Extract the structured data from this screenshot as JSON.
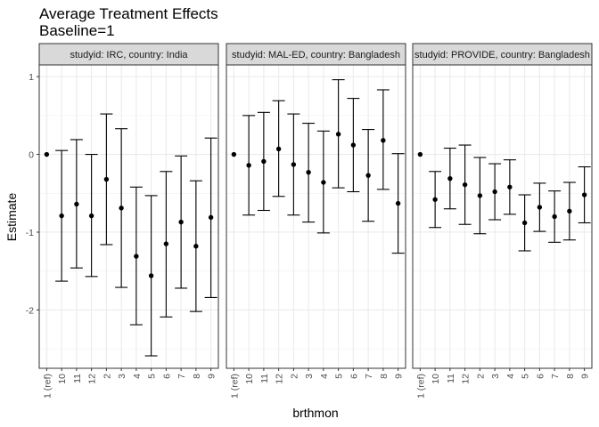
{
  "chart_data": {
    "type": "scatter",
    "subtype": "point-with-errorbars",
    "title": "Average Treatment Effects",
    "subtitle": "Baseline=1",
    "xlabel": "brthmon",
    "ylabel": "Estimate",
    "ylim": [
      -2.75,
      1.15
    ],
    "y_ticks": [
      1,
      0,
      -1,
      -2
    ],
    "categories": [
      "1 (ref)",
      "10",
      "11",
      "12",
      "2",
      "3",
      "4",
      "5",
      "6",
      "7",
      "8",
      "9"
    ],
    "grid": true,
    "theme": "bw",
    "point_color": "#000000",
    "panels": [
      {
        "strip": "studyid: IRC, country: India",
        "estimate": [
          0,
          -0.79,
          -0.64,
          -0.79,
          -0.32,
          -0.69,
          -1.31,
          -1.56,
          -1.15,
          -0.87,
          -1.18,
          -0.81
        ],
        "lower": [
          0,
          -1.63,
          -1.46,
          -1.57,
          -1.16,
          -1.71,
          -2.19,
          -2.59,
          -2.09,
          -1.72,
          -2.02,
          -1.84
        ],
        "upper": [
          0,
          0.05,
          0.19,
          0.0,
          0.52,
          0.33,
          -0.42,
          -0.53,
          -0.22,
          -0.02,
          -0.34,
          0.21
        ]
      },
      {
        "strip": "studyid: MAL-ED, country: Bangladesh",
        "estimate": [
          0,
          -0.14,
          -0.09,
          0.07,
          -0.13,
          -0.23,
          -0.36,
          0.26,
          0.12,
          -0.27,
          0.18,
          -0.63
        ],
        "lower": [
          0,
          -0.78,
          -0.72,
          -0.54,
          -0.78,
          -0.87,
          -1.01,
          -0.43,
          -0.48,
          -0.86,
          -0.45,
          -1.27
        ],
        "upper": [
          0,
          0.5,
          0.54,
          0.69,
          0.52,
          0.4,
          0.3,
          0.96,
          0.72,
          0.32,
          0.83,
          0.01
        ]
      },
      {
        "strip": "studyid: PROVIDE, country: Bangladesh",
        "estimate": [
          0,
          -0.58,
          -0.31,
          -0.39,
          -0.53,
          -0.48,
          -0.42,
          -0.88,
          -0.68,
          -0.8,
          -0.73,
          -0.52
        ],
        "lower": [
          0,
          -0.94,
          -0.7,
          -0.9,
          -1.02,
          -0.84,
          -0.77,
          -1.24,
          -0.99,
          -1.13,
          -1.1,
          -0.88
        ],
        "upper": [
          0,
          -0.22,
          0.08,
          0.12,
          -0.04,
          -0.12,
          -0.07,
          -0.52,
          -0.37,
          -0.47,
          -0.36,
          -0.16
        ]
      }
    ]
  }
}
